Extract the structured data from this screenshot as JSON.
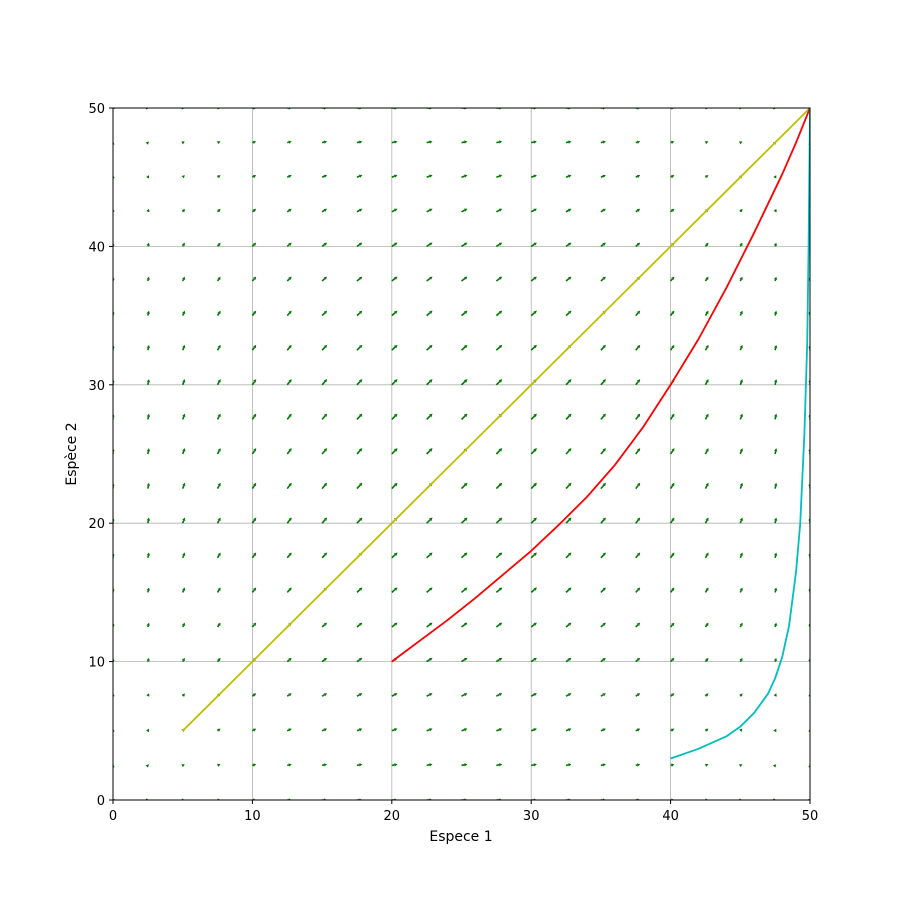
{
  "chart_data": {
    "type": "quiver",
    "title": "",
    "xlabel": "Espece 1",
    "ylabel": "Espèce 2",
    "xlim": [
      0,
      50
    ],
    "ylim": [
      0,
      50
    ],
    "xticks": [
      0,
      10,
      20,
      30,
      40,
      50
    ],
    "yticks": [
      0,
      10,
      20,
      30,
      40,
      50
    ],
    "grid": true,
    "legend": "none",
    "vector_field": {
      "color": "#007700",
      "x_start": 0,
      "x_step": 2.5,
      "x_count": 21,
      "y_start": 0,
      "y_step": 2.5,
      "y_count": 21,
      "carrying_capacity": 50
    },
    "series": [
      {
        "color": "#bfbf00",
        "x": [
          5,
          10,
          15,
          20,
          25,
          30,
          35,
          40,
          45,
          50
        ],
        "y": [
          5,
          10,
          15,
          20,
          25,
          30,
          35,
          40,
          45,
          50
        ]
      },
      {
        "color": "#ff0000",
        "x": [
          20,
          22,
          24,
          26,
          28,
          30,
          32,
          34,
          36,
          38,
          40,
          42,
          44,
          46,
          48,
          49,
          50
        ],
        "y": [
          10,
          11.5,
          13.0,
          14.6,
          16.3,
          18.0,
          19.9,
          21.9,
          24.2,
          26.9,
          30,
          33.3,
          37.0,
          41.0,
          45.2,
          47.5,
          50
        ]
      },
      {
        "color": "#00bfbf",
        "x": [
          40,
          42,
          44,
          45,
          46,
          47,
          47.5,
          48,
          48.5,
          49,
          49.3,
          49.6,
          49.8,
          49.9,
          50
        ],
        "y": [
          3,
          3.7,
          4.6,
          5.3,
          6.3,
          7.7,
          8.8,
          10.3,
          12.6,
          16.5,
          20,
          26.5,
          33,
          40,
          50
        ]
      }
    ]
  }
}
